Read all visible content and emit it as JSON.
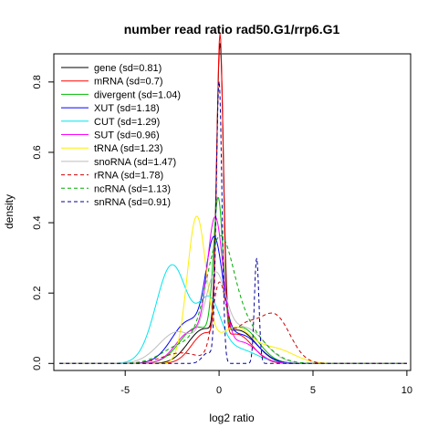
{
  "chart_data": {
    "type": "line",
    "title": "number read ratio rad50.G1/rrp6.G1",
    "xlabel": "log2 ratio",
    "ylabel": "density",
    "xlim": [
      -8.8,
      10.2
    ],
    "ylim": [
      -0.02,
      0.88
    ],
    "xticks": [
      -5,
      0,
      5,
      10
    ],
    "yticks": [
      0.0,
      0.2,
      0.4,
      0.6,
      0.8
    ],
    "xtick_labels": [
      "-5",
      "0",
      "5",
      "10"
    ],
    "ytick_labels": [
      "0.0",
      "0.2",
      "0.4",
      "0.6",
      "0.8"
    ],
    "legend_position": "top-left",
    "grid": false,
    "x_range": [
      -8.5,
      10
    ],
    "series": [
      {
        "name": "gene (sd=0.81)",
        "color": "#000000",
        "dash": "solid",
        "components": [
          [
            0.82,
            0.05,
            0.18
          ],
          [
            0.09,
            -0.9,
            0.8
          ],
          [
            0.09,
            1.1,
            0.9
          ]
        ]
      },
      {
        "name": "mRNA (sd=0.7)",
        "color": "#ff0000",
        "dash": "solid",
        "components": [
          [
            0.86,
            0.05,
            0.17
          ],
          [
            0.08,
            -0.8,
            0.7
          ],
          [
            0.08,
            1.0,
            0.8
          ]
        ]
      },
      {
        "name": "divergent (sd=1.04)",
        "color": "#00bb00",
        "dash": "solid",
        "components": [
          [
            0.39,
            -0.05,
            0.25
          ],
          [
            0.1,
            -1.2,
            0.9
          ],
          [
            0.1,
            1.2,
            0.9
          ]
        ]
      },
      {
        "name": "XUT (sd=1.18)",
        "color": "#0000ff",
        "dash": "solid",
        "components": [
          [
            0.3,
            -0.25,
            0.45
          ],
          [
            0.12,
            -1.6,
            0.9
          ],
          [
            0.08,
            1.2,
            0.9
          ]
        ]
      },
      {
        "name": "CUT (sd=1.29)",
        "color": "#00e5ee",
        "dash": "solid",
        "components": [
          [
            0.28,
            -2.5,
            0.85
          ],
          [
            0.16,
            -0.5,
            0.6
          ],
          [
            0.04,
            1.0,
            1.0
          ]
        ]
      },
      {
        "name": "SUT (sd=0.96)",
        "color": "#ff00ff",
        "dash": "solid",
        "components": [
          [
            0.38,
            -0.2,
            0.42
          ],
          [
            0.09,
            -1.5,
            0.8
          ],
          [
            0.06,
            1.2,
            0.8
          ]
        ]
      },
      {
        "name": "tRNA (sd=1.23)",
        "color": "#ffee00",
        "dash": "solid",
        "components": [
          [
            0.41,
            -1.2,
            0.5
          ],
          [
            0.1,
            0.8,
            0.9
          ],
          [
            0.04,
            3.0,
            1.0
          ]
        ]
      },
      {
        "name": "snoRNA (sd=1.47)",
        "color": "#bebebe",
        "dash": "solid",
        "components": [
          [
            0.22,
            -0.2,
            0.55
          ],
          [
            0.09,
            -2.2,
            1.0
          ],
          [
            0.1,
            1.4,
            1.0
          ]
        ]
      },
      {
        "name": "rRNA (sd=1.78)",
        "color": "#cc0000",
        "dash": "dashed",
        "components": [
          [
            0.2,
            0.0,
            0.35
          ],
          [
            0.13,
            3.0,
            0.8
          ],
          [
            0.1,
            1.3,
            0.8
          ],
          [
            0.03,
            -2.0,
            1.0
          ]
        ]
      },
      {
        "name": "ncRNA (sd=1.13)",
        "color": "#00aa00",
        "dash": "dashed",
        "components": [
          [
            0.27,
            0.0,
            0.7
          ],
          [
            0.12,
            1.0,
            1.2
          ],
          [
            0.05,
            -2.0,
            1.0
          ]
        ]
      },
      {
        "name": "snRNA (sd=0.91)",
        "color": "#000099",
        "dash": "dashed",
        "components": [
          [
            0.8,
            0.0,
            0.15
          ],
          [
            0.3,
            2.0,
            0.12
          ],
          [
            0.03,
            -0.6,
            0.3
          ]
        ]
      }
    ]
  }
}
